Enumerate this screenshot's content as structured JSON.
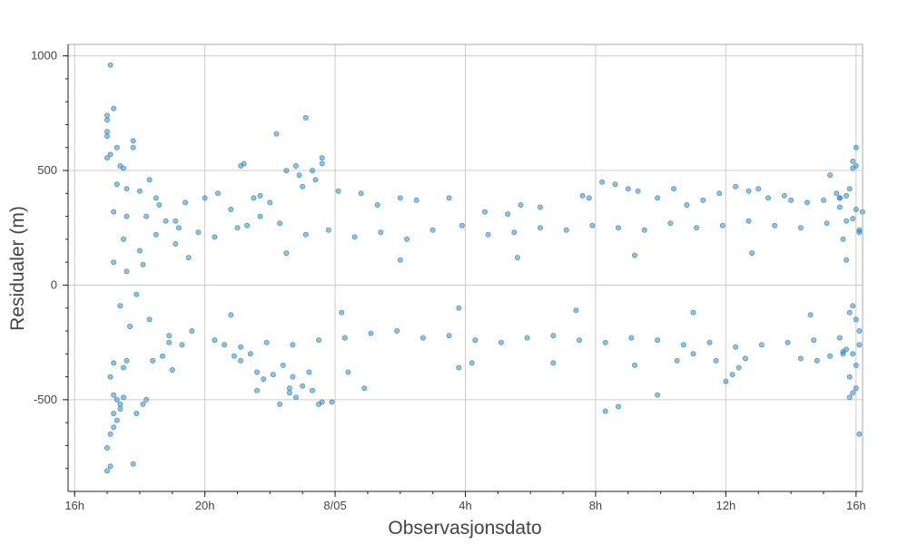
{
  "chart_data": {
    "type": "scatter",
    "title": "",
    "xlabel": "Observasjonsdato",
    "ylabel": "Residualer (m)",
    "x_unit": "hours",
    "xlim": [
      15.8,
      40.2
    ],
    "ylim": [
      -900,
      1050
    ],
    "xticks": [
      {
        "value": 16,
        "label": "16h"
      },
      {
        "value": 20,
        "label": "20h"
      },
      {
        "value": 24,
        "label": "8/05"
      },
      {
        "value": 28,
        "label": "4h"
      },
      {
        "value": 32,
        "label": "8h"
      },
      {
        "value": 36,
        "label": "12h"
      },
      {
        "value": 40,
        "label": "16h"
      }
    ],
    "yticks": [
      {
        "value": -500,
        "label": "-500"
      },
      {
        "value": 0,
        "label": "0"
      },
      {
        "value": 500,
        "label": "500"
      },
      {
        "value": 1000,
        "label": "1000"
      }
    ],
    "grid": true,
    "legend": "none",
    "marker_color": "#2b83ba",
    "series": [
      {
        "points": [
          [
            17.0,
            -810
          ],
          [
            17.1,
            -790
          ],
          [
            17.0,
            -710
          ],
          [
            17.1,
            -650
          ],
          [
            17.2,
            -620
          ],
          [
            17.3,
            -590
          ],
          [
            17.2,
            -560
          ],
          [
            17.4,
            -540
          ],
          [
            17.3,
            -500
          ],
          [
            17.2,
            -480
          ],
          [
            17.4,
            -520
          ],
          [
            17.5,
            -490
          ],
          [
            17.8,
            -780
          ],
          [
            18.2,
            -500
          ],
          [
            18.1,
            -520
          ],
          [
            17.9,
            -560
          ],
          [
            17.1,
            -400
          ],
          [
            17.2,
            -340
          ],
          [
            17.5,
            -360
          ],
          [
            17.6,
            -330
          ],
          [
            17.1,
            960
          ],
          [
            17.2,
            770
          ],
          [
            17.0,
            740
          ],
          [
            17.0,
            720
          ],
          [
            17.0,
            670
          ],
          [
            17.0,
            650
          ],
          [
            17.3,
            600
          ],
          [
            17.1,
            570
          ],
          [
            17.0,
            555
          ],
          [
            17.8,
            630
          ],
          [
            17.4,
            520
          ],
          [
            17.5,
            510
          ],
          [
            17.3,
            440
          ],
          [
            17.6,
            420
          ],
          [
            17.2,
            320
          ],
          [
            17.6,
            300
          ],
          [
            17.8,
            600
          ],
          [
            18.0,
            410
          ],
          [
            18.3,
            460
          ],
          [
            18.5,
            380
          ],
          [
            18.6,
            350
          ],
          [
            18.2,
            300
          ],
          [
            18.8,
            280
          ],
          [
            18.4,
            -330
          ],
          [
            18.7,
            -310
          ],
          [
            19.0,
            -370
          ],
          [
            18.9,
            -250
          ],
          [
            19.3,
            -260
          ],
          [
            19.1,
            280
          ],
          [
            19.4,
            360
          ],
          [
            19.2,
            250
          ],
          [
            20.0,
            380
          ],
          [
            20.4,
            400
          ],
          [
            20.8,
            330
          ],
          [
            21.1,
            520
          ],
          [
            21.2,
            530
          ],
          [
            21.5,
            380
          ],
          [
            21.7,
            390
          ],
          [
            22.0,
            360
          ],
          [
            21.3,
            260
          ],
          [
            20.6,
            -260
          ],
          [
            20.9,
            -310
          ],
          [
            21.4,
            -300
          ],
          [
            21.6,
            -380
          ],
          [
            21.1,
            -330
          ],
          [
            21.6,
            -460
          ],
          [
            21.8,
            -410
          ],
          [
            22.1,
            -390
          ],
          [
            22.4,
            -350
          ],
          [
            22.6,
            -470
          ],
          [
            22.2,
            660
          ],
          [
            22.5,
            500
          ],
          [
            22.8,
            520
          ],
          [
            22.9,
            480
          ],
          [
            23.1,
            730
          ],
          [
            23.3,
            500
          ],
          [
            23.4,
            460
          ],
          [
            23.6,
            555
          ],
          [
            23.6,
            530
          ],
          [
            23.0,
            430
          ],
          [
            22.3,
            -520
          ],
          [
            22.6,
            -450
          ],
          [
            22.8,
            -490
          ],
          [
            23.0,
            -440
          ],
          [
            23.3,
            -460
          ],
          [
            23.5,
            -520
          ],
          [
            23.6,
            -510
          ],
          [
            23.9,
            -510
          ],
          [
            23.2,
            -380
          ],
          [
            22.7,
            -400
          ],
          [
            24.1,
            410
          ],
          [
            24.8,
            400
          ],
          [
            24.9,
            -450
          ],
          [
            24.4,
            -380
          ],
          [
            25.3,
            350
          ],
          [
            26.0,
            380
          ],
          [
            26.5,
            370
          ],
          [
            27.5,
            380
          ],
          [
            27.8,
            -360
          ],
          [
            28.2,
            -340
          ],
          [
            28.6,
            320
          ],
          [
            29.3,
            310
          ],
          [
            29.7,
            350
          ],
          [
            30.3,
            340
          ],
          [
            30.7,
            -340
          ],
          [
            31.6,
            390
          ],
          [
            31.8,
            380
          ],
          [
            32.2,
            450
          ],
          [
            32.6,
            440
          ],
          [
            33.0,
            420
          ],
          [
            33.3,
            410
          ],
          [
            32.3,
            -550
          ],
          [
            32.7,
            -530
          ],
          [
            33.2,
            -350
          ],
          [
            33.9,
            380
          ],
          [
            34.4,
            420
          ],
          [
            34.8,
            350
          ],
          [
            35.3,
            370
          ],
          [
            35.8,
            400
          ],
          [
            33.9,
            -480
          ],
          [
            34.5,
            -330
          ],
          [
            35.0,
            -300
          ],
          [
            35.7,
            -330
          ],
          [
            36.0,
            -420
          ],
          [
            36.2,
            -390
          ],
          [
            36.4,
            -360
          ],
          [
            36.6,
            -320
          ],
          [
            36.3,
            430
          ],
          [
            36.7,
            410
          ],
          [
            37.0,
            420
          ],
          [
            37.3,
            380
          ],
          [
            37.8,
            390
          ],
          [
            38.0,
            370
          ],
          [
            38.5,
            360
          ],
          [
            39.0,
            370
          ],
          [
            39.5,
            340
          ],
          [
            38.3,
            -320
          ],
          [
            38.8,
            -330
          ],
          [
            39.2,
            -310
          ],
          [
            39.6,
            -290
          ],
          [
            39.2,
            480
          ],
          [
            39.4,
            400
          ],
          [
            39.8,
            420
          ],
          [
            39.5,
            380
          ],
          [
            40.0,
            330
          ],
          [
            40.2,
            320
          ],
          [
            39.7,
            280
          ],
          [
            39.9,
            290
          ],
          [
            40.1,
            240
          ],
          [
            39.6,
            200
          ],
          [
            39.5,
            380
          ],
          [
            39.7,
            390
          ],
          [
            39.9,
            540
          ],
          [
            40.0,
            520
          ],
          [
            40.0,
            600
          ],
          [
            39.9,
            510
          ],
          [
            40.1,
            230
          ],
          [
            39.6,
            -300
          ],
          [
            39.8,
            -400
          ],
          [
            40.0,
            -350
          ],
          [
            40.1,
            -650
          ],
          [
            39.9,
            -470
          ],
          [
            39.8,
            -490
          ],
          [
            40.0,
            -450
          ],
          [
            39.7,
            -280
          ],
          [
            39.9,
            -300
          ],
          [
            40.1,
            -200
          ],
          [
            40.0,
            -150
          ],
          [
            39.8,
            -120
          ],
          [
            40.1,
            -260
          ],
          [
            18.5,
            220
          ],
          [
            19.1,
            180
          ],
          [
            19.8,
            230
          ],
          [
            20.3,
            210
          ],
          [
            21.0,
            250
          ],
          [
            21.7,
            300
          ],
          [
            22.3,
            270
          ],
          [
            23.1,
            220
          ],
          [
            23.8,
            240
          ],
          [
            24.6,
            210
          ],
          [
            25.4,
            230
          ],
          [
            26.2,
            200
          ],
          [
            27.0,
            240
          ],
          [
            27.9,
            260
          ],
          [
            28.7,
            220
          ],
          [
            29.5,
            230
          ],
          [
            30.3,
            250
          ],
          [
            31.1,
            240
          ],
          [
            31.9,
            260
          ],
          [
            32.7,
            250
          ],
          [
            33.5,
            240
          ],
          [
            34.3,
            270
          ],
          [
            35.1,
            250
          ],
          [
            35.9,
            260
          ],
          [
            36.7,
            280
          ],
          [
            37.5,
            260
          ],
          [
            38.3,
            250
          ],
          [
            39.1,
            270
          ],
          [
            18.9,
            -220
          ],
          [
            19.6,
            -200
          ],
          [
            20.3,
            -240
          ],
          [
            21.1,
            -270
          ],
          [
            21.9,
            -250
          ],
          [
            22.7,
            -260
          ],
          [
            23.5,
            -240
          ],
          [
            24.3,
            -230
          ],
          [
            25.1,
            -210
          ],
          [
            25.9,
            -200
          ],
          [
            26.7,
            -230
          ],
          [
            27.5,
            -220
          ],
          [
            28.3,
            -240
          ],
          [
            29.1,
            -250
          ],
          [
            29.9,
            -230
          ],
          [
            30.7,
            -220
          ],
          [
            31.5,
            -240
          ],
          [
            32.3,
            -250
          ],
          [
            33.1,
            -230
          ],
          [
            33.9,
            -240
          ],
          [
            34.7,
            -260
          ],
          [
            35.5,
            -250
          ],
          [
            36.3,
            -270
          ],
          [
            37.1,
            -260
          ],
          [
            37.9,
            -250
          ],
          [
            38.7,
            -240
          ],
          [
            39.5,
            -230
          ],
          [
            17.5,
            200
          ],
          [
            17.7,
            -180
          ],
          [
            18.0,
            150
          ],
          [
            18.3,
            -150
          ],
          [
            17.2,
            100
          ],
          [
            17.4,
            -90
          ],
          [
            17.6,
            60
          ],
          [
            17.9,
            -40
          ],
          [
            18.1,
            90
          ],
          [
            19.5,
            120
          ],
          [
            20.8,
            -130
          ],
          [
            22.5,
            140
          ],
          [
            24.2,
            -120
          ],
          [
            26.0,
            110
          ],
          [
            27.8,
            -100
          ],
          [
            29.6,
            120
          ],
          [
            31.4,
            -110
          ],
          [
            33.2,
            130
          ],
          [
            35.0,
            -120
          ],
          [
            36.8,
            140
          ],
          [
            38.6,
            -130
          ],
          [
            39.7,
            110
          ],
          [
            39.9,
            -90
          ]
        ]
      }
    ]
  }
}
